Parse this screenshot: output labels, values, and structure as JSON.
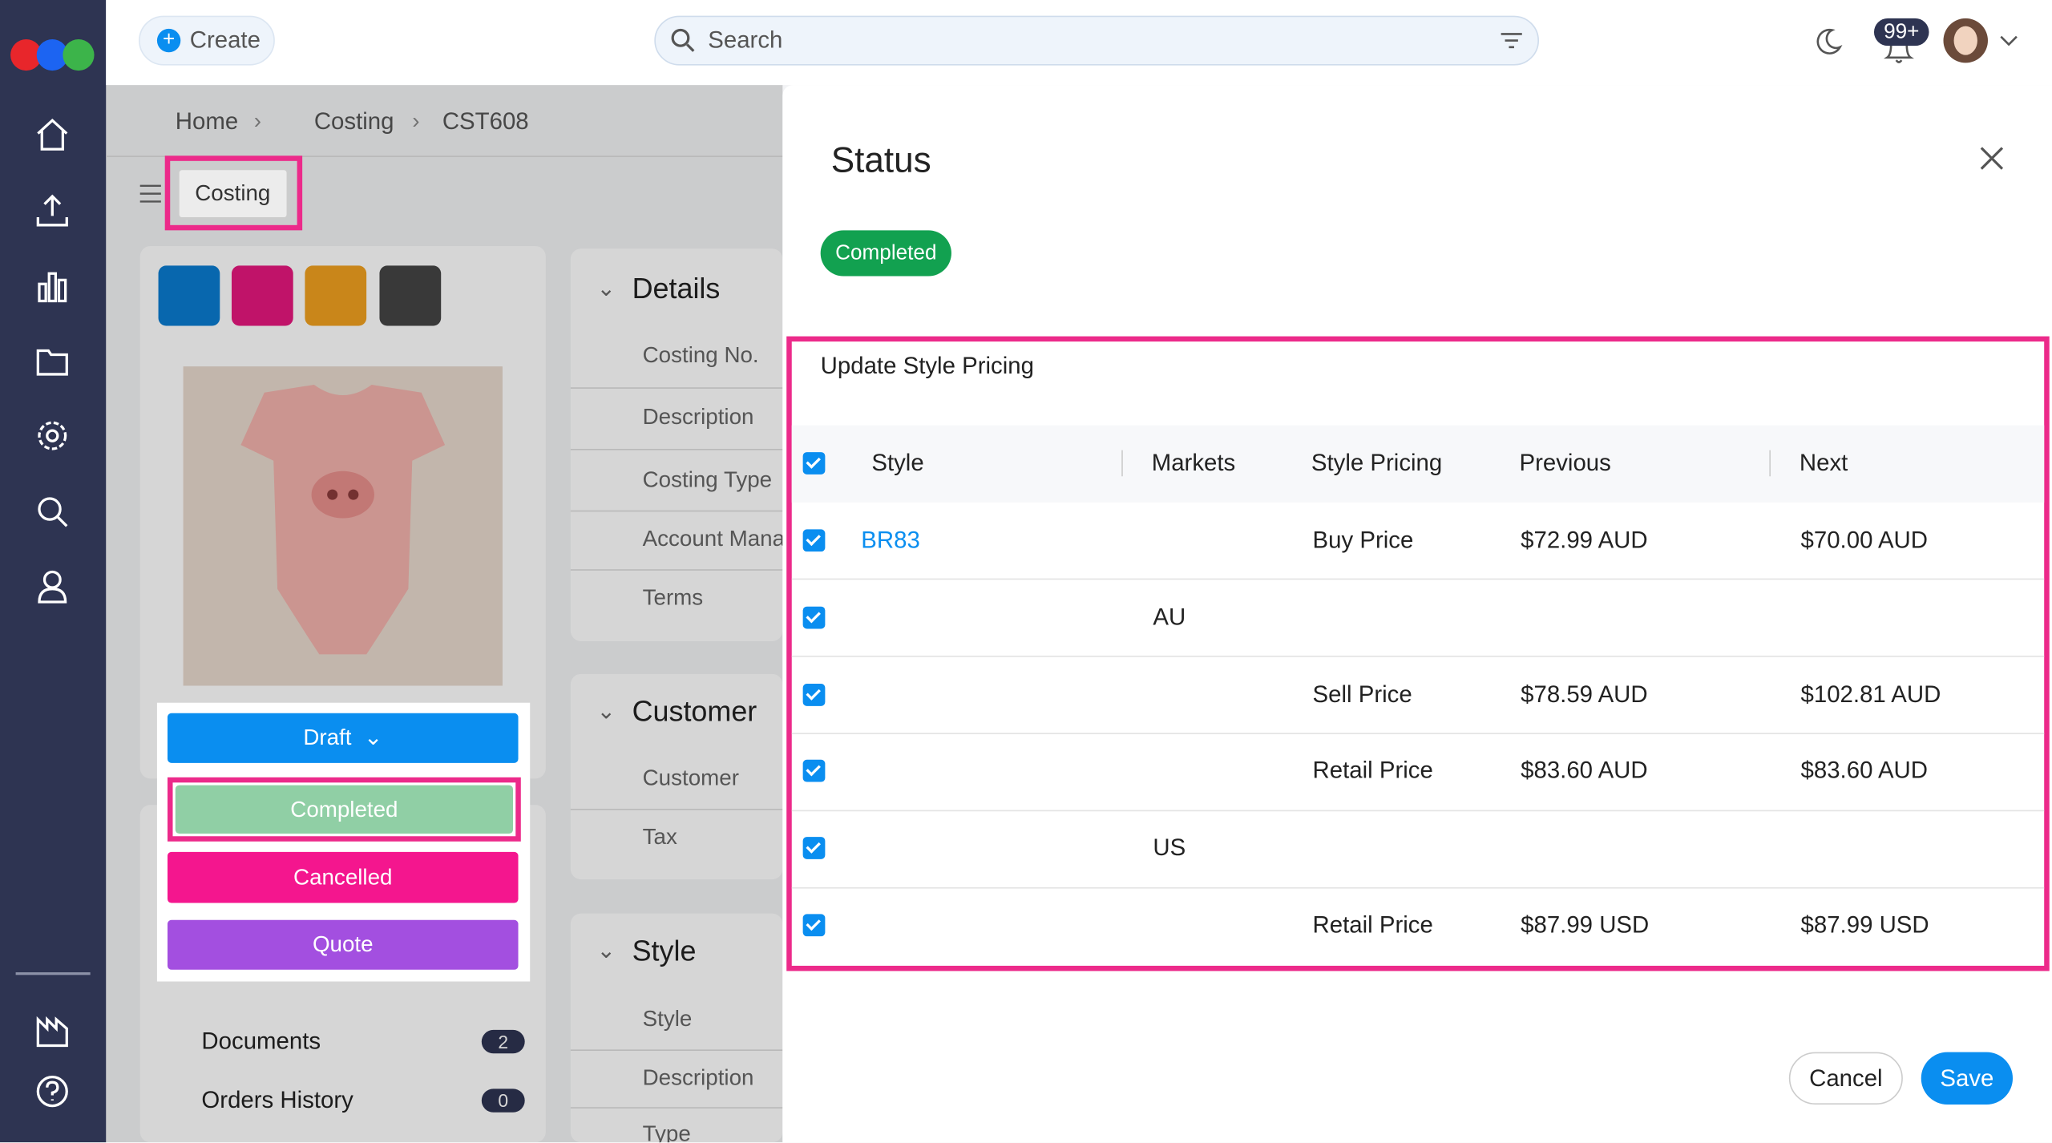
{
  "header": {
    "create": "Create",
    "search": "Search",
    "notifications": "99+"
  },
  "breadcrumb": [
    "Home",
    "Costing",
    "CST608"
  ],
  "tab": "Costing",
  "status_menu": [
    "Draft",
    "Completed",
    "Cancelled",
    "Quote"
  ],
  "side_links": [
    {
      "label": "Documents",
      "count": 2
    },
    {
      "label": "Orders History",
      "count": 0
    }
  ],
  "details": {
    "title": "Details",
    "fields": [
      "Costing No.",
      "Description",
      "Costing Type",
      "Account Manager",
      "Terms"
    ]
  },
  "customer": {
    "title": "Customer",
    "fields": [
      "Customer",
      "Tax"
    ]
  },
  "style": {
    "title": "Style",
    "fields": [
      "Style",
      "Description",
      "Type"
    ]
  },
  "modal": {
    "title": "Status",
    "status": "Completed",
    "section": "Update Style Pricing",
    "columns": {
      "style": "Style",
      "market": "Markets",
      "pricing": "Style Pricing",
      "previous": "Previous",
      "next": "Next"
    },
    "rows": [
      {
        "style": "BR83",
        "pricing": "Buy Price",
        "previous": "$72.99 AUD",
        "next": "$70.00 AUD"
      },
      {
        "market": "AU"
      },
      {
        "pricing": "Sell Price",
        "previous": "$78.59 AUD",
        "next": "$102.81 AUD"
      },
      {
        "pricing": "Retail Price",
        "previous": "$83.60 AUD",
        "next": "$83.60 AUD"
      },
      {
        "market": "US"
      },
      {
        "pricing": "Retail Price",
        "previous": "$87.99 USD",
        "next": "$87.99 USD"
      }
    ],
    "cancel": "Cancel",
    "save": "Save"
  }
}
